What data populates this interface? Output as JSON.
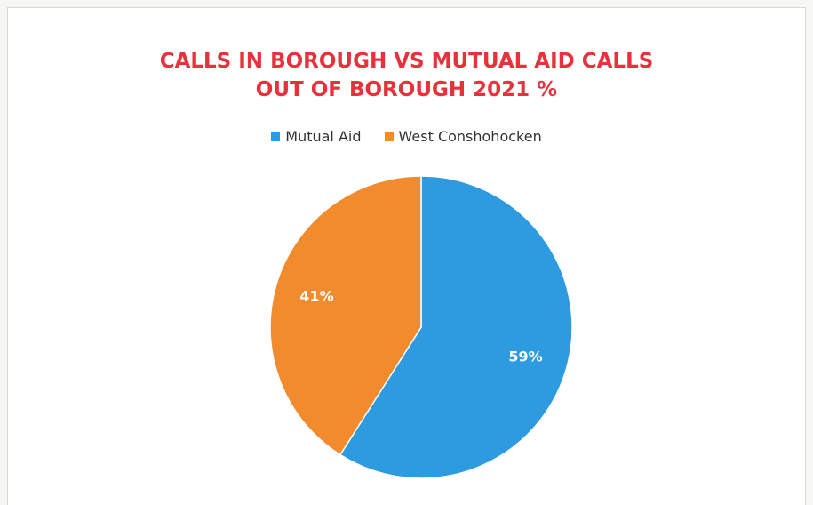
{
  "chart_data": {
    "type": "pie",
    "title": [
      "CALLS IN BOROUGH VS MUTUAL AID CALLS",
      "OUT OF BOROUGH 2021 %"
    ],
    "legend_position": "top",
    "slices": [
      {
        "name": "Mutual Aid",
        "value": 59,
        "label": "59%",
        "color": "#2e9be0"
      },
      {
        "name": "West Conshohocken",
        "value": 41,
        "label": "41%",
        "color": "#f28a2e"
      }
    ]
  }
}
